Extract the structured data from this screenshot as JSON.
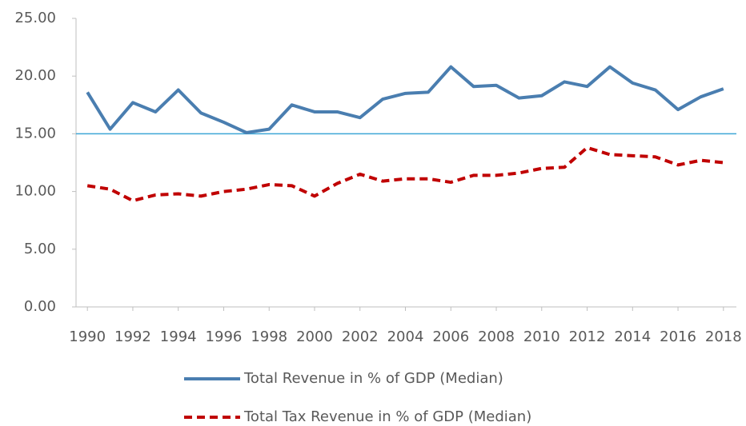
{
  "chart_data": {
    "type": "line",
    "x": [
      1990,
      1991,
      1992,
      1993,
      1994,
      1995,
      1996,
      1997,
      1998,
      1999,
      2000,
      2001,
      2002,
      2003,
      2004,
      2005,
      2006,
      2007,
      2008,
      2009,
      2010,
      2011,
      2012,
      2013,
      2014,
      2015,
      2016,
      2017,
      2018
    ],
    "series": [
      {
        "name": "Total Revenue in % of GDP (Median)",
        "color": "#4a7eb0",
        "dash": "solid",
        "values": [
          18.6,
          15.4,
          17.7,
          16.9,
          18.8,
          16.8,
          16.0,
          15.1,
          15.4,
          17.5,
          16.9,
          16.9,
          16.4,
          18.0,
          18.5,
          18.6,
          20.8,
          19.1,
          19.2,
          18.1,
          18.3,
          19.5,
          19.1,
          20.8,
          19.4,
          18.8,
          17.1,
          18.2,
          18.9
        ]
      },
      {
        "name": "Total Tax Revenue in % of GDP (Median)",
        "color": "#c00000",
        "dash": "dashed",
        "values": [
          10.5,
          10.2,
          9.2,
          9.7,
          9.8,
          9.6,
          10.0,
          10.2,
          10.6,
          10.5,
          9.6,
          10.7,
          11.5,
          10.9,
          11.1,
          11.1,
          10.8,
          11.4,
          11.4,
          11.6,
          12.0,
          12.1,
          13.8,
          13.2,
          13.1,
          13.0,
          12.3,
          12.7,
          12.5
        ]
      }
    ],
    "reference_line": 15,
    "reference_color": "#3ea6d6",
    "xlim": [
      1989.5,
      2018.5
    ],
    "xticks": [
      1990,
      1992,
      1994,
      1996,
      1998,
      2000,
      2002,
      2004,
      2006,
      2008,
      2010,
      2012,
      2014,
      2016,
      2018
    ],
    "ylim": [
      0,
      25
    ],
    "yticks": [
      {
        "value": 0,
        "label": "0.00"
      },
      {
        "value": 5,
        "label": "5.00"
      },
      {
        "value": 10,
        "label": "10.00"
      },
      {
        "value": 15,
        "label": "15.00"
      },
      {
        "value": 20,
        "label": "20.00"
      },
      {
        "value": 25,
        "label": "25.00"
      }
    ],
    "legend": "bottom"
  }
}
